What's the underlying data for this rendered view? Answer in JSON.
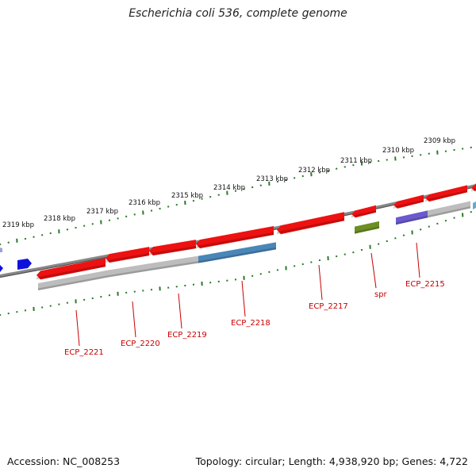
{
  "title": "Escherichia coli 536, complete genome",
  "footer": {
    "accession": "Accession: NC_008253",
    "topology": "Topology: circular; Length: 4,938,920 bp; Genes: 4,722"
  },
  "colors": {
    "cds": "#ee1111",
    "backbone": "#777777",
    "tick": "#2a7a2a",
    "label": "#c80000",
    "hypothetical": "#bdbdbd",
    "steelblue": "#4a86b8",
    "olive": "#6c8e23",
    "slateblue": "#6a5acd",
    "blue": "#1010dd"
  },
  "scale": {
    "labels": [
      {
        "text": "2319 kbp",
        "kbp": 2319
      },
      {
        "text": "2318 kbp",
        "kbp": 2318
      },
      {
        "text": "2317 kbp",
        "kbp": 2317
      },
      {
        "text": "2316 kbp",
        "kbp": 2316
      },
      {
        "text": "2315 kbp",
        "kbp": 2315
      },
      {
        "text": "2314 kbp",
        "kbp": 2314
      },
      {
        "text": "2313 kbp",
        "kbp": 2313
      },
      {
        "text": "2312 kbp",
        "kbp": 2312
      },
      {
        "text": "2311 kbp",
        "kbp": 2311
      },
      {
        "text": "2310 kbp",
        "kbp": 2310
      },
      {
        "text": "2309 kbp",
        "kbp": 2309
      }
    ]
  },
  "features": [
    {
      "id": "ECP_2221",
      "label": "ECP_2221"
    },
    {
      "id": "ECP_2220",
      "label": "ECP_2220"
    },
    {
      "id": "ECP_2219",
      "label": "ECP_2219"
    },
    {
      "id": "ECP_2218",
      "label": "ECP_2218"
    },
    {
      "id": "ECP_2217",
      "label": "ECP_2217"
    },
    {
      "id": "spr",
      "label": "spr"
    },
    {
      "id": "ECP_2215",
      "label": "ECP_2215"
    }
  ]
}
